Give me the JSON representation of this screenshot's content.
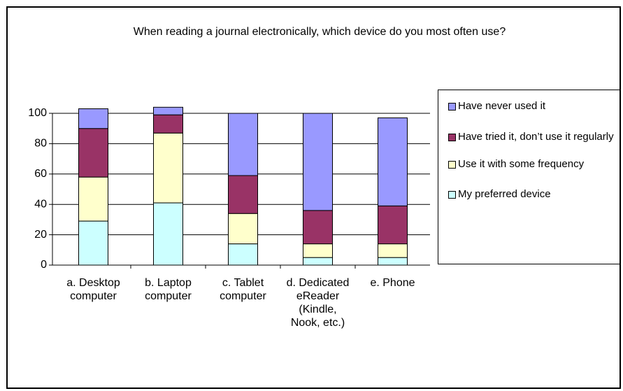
{
  "chart_data": {
    "type": "stacked_bar",
    "title": "When reading a journal electronically, which device do you most often use?",
    "categories": [
      "a. Desktop computer",
      "b. Laptop computer",
      "c. Tablet computer",
      "d. Dedicated eReader (Kindle, Nook, etc.)",
      "e. Phone"
    ],
    "series": [
      {
        "name": "My preferred device",
        "color": "#ccffff",
        "values": [
          29,
          41,
          14,
          5,
          5
        ]
      },
      {
        "name": "Use it with some frequency",
        "color": "#ffffcc",
        "values": [
          29,
          46,
          20,
          9,
          9
        ]
      },
      {
        "name": "Have tried it, don’t use it regularly",
        "color": "#993366",
        "values": [
          32,
          12,
          25,
          22,
          25
        ]
      },
      {
        "name": "Have never used it",
        "color": "#9999ff",
        "values": [
          13,
          5,
          41,
          64,
          58
        ]
      }
    ],
    "ylim": [
      0,
      100
    ],
    "yticks": [
      0,
      20,
      40,
      60,
      80,
      100
    ],
    "grid": true,
    "legend": "right"
  }
}
